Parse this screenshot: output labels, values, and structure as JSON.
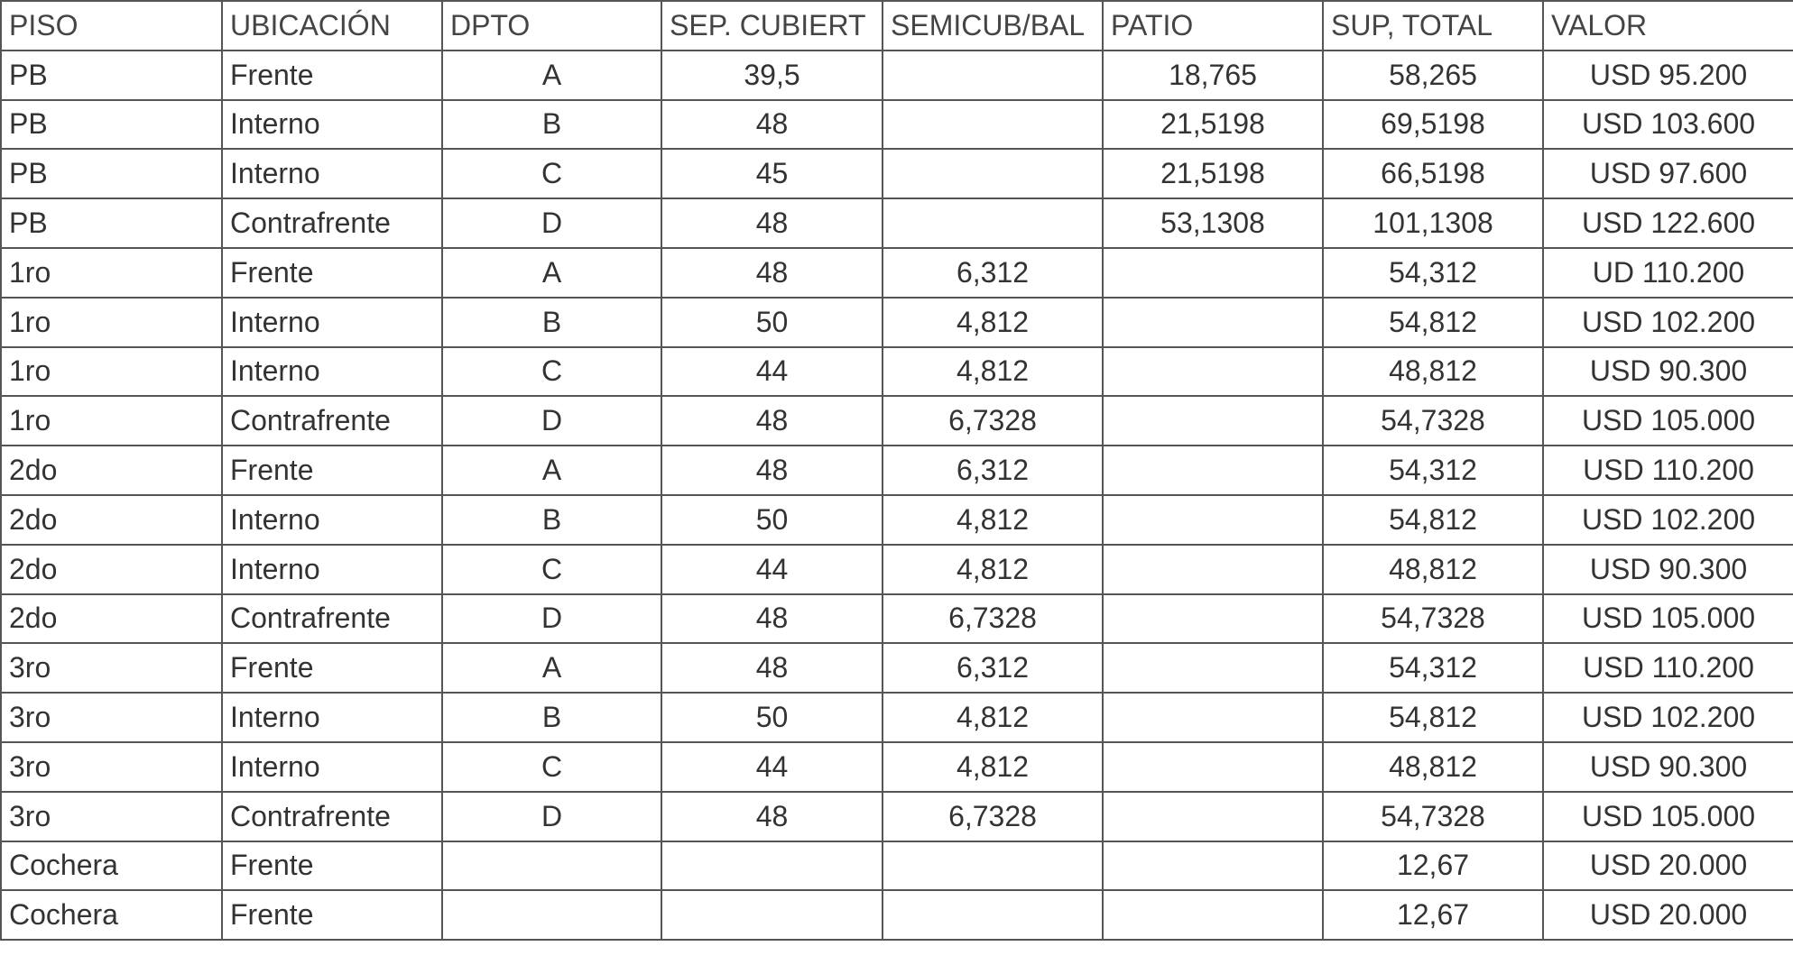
{
  "headers": [
    "PISO",
    "UBICACIÓN",
    "DPTO",
    "SEP. CUBIERT",
    "SEMICUB/BAL",
    "PATIO",
    "SUP, TOTAL",
    "VALOR"
  ],
  "rows": [
    [
      "PB",
      "Frente",
      "A",
      "39,5",
      "",
      "18,765",
      "58,265",
      "USD 95.200"
    ],
    [
      "PB",
      "Interno",
      "B",
      "48",
      "",
      "21,5198",
      "69,5198",
      "USD 103.600"
    ],
    [
      "PB",
      "Interno",
      "C",
      "45",
      "",
      "21,5198",
      "66,5198",
      "USD 97.600"
    ],
    [
      "PB",
      "Contrafrente",
      "D",
      "48",
      "",
      "53,1308",
      "101,1308",
      "USD 122.600"
    ],
    [
      "1ro",
      "Frente",
      "A",
      "48",
      "6,312",
      "",
      "54,312",
      "UD 110.200"
    ],
    [
      "1ro",
      "Interno",
      "B",
      "50",
      "4,812",
      "",
      "54,812",
      "USD 102.200"
    ],
    [
      "1ro",
      "Interno",
      "C",
      "44",
      "4,812",
      "",
      "48,812",
      "USD 90.300"
    ],
    [
      "1ro",
      "Contrafrente",
      "D",
      "48",
      "6,7328",
      "",
      "54,7328",
      "USD 105.000"
    ],
    [
      "2do",
      "Frente",
      "A",
      "48",
      "6,312",
      "",
      "54,312",
      "USD 110.200"
    ],
    [
      "2do",
      "Interno",
      "B",
      "50",
      "4,812",
      "",
      "54,812",
      "USD 102.200"
    ],
    [
      "2do",
      "Interno",
      "C",
      "44",
      "4,812",
      "",
      "48,812",
      "USD 90.300"
    ],
    [
      "2do",
      "Contrafrente",
      "D",
      "48",
      "6,7328",
      "",
      "54,7328",
      "USD 105.000"
    ],
    [
      "3ro",
      "Frente",
      "A",
      "48",
      "6,312",
      "",
      "54,312",
      "USD 110.200"
    ],
    [
      "3ro",
      "Interno",
      "B",
      "50",
      "4,812",
      "",
      "54,812",
      "USD 102.200"
    ],
    [
      "3ro",
      "Interno",
      "C",
      "44",
      "4,812",
      "",
      "48,812",
      "USD 90.300"
    ],
    [
      "3ro",
      "Contrafrente",
      "D",
      "48",
      "6,7328",
      "",
      "54,7328",
      "USD 105.000"
    ],
    [
      "Cochera",
      "Frente",
      "",
      "",
      "",
      "",
      "12,67",
      "USD 20.000"
    ],
    [
      "Cochera",
      "Frente",
      "",
      "",
      "",
      "",
      "12,67",
      "USD 20.000"
    ]
  ]
}
